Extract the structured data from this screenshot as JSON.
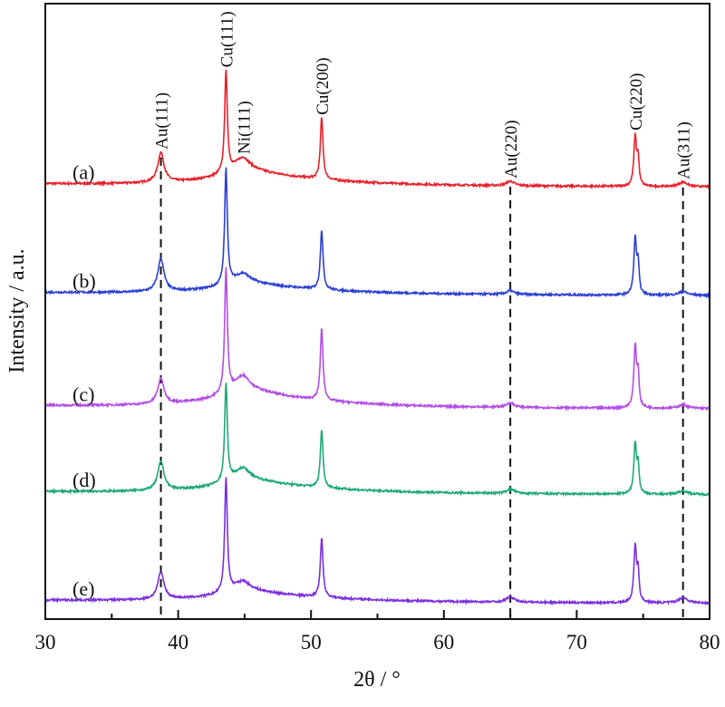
{
  "chart_data": {
    "type": "line",
    "xlabel": "2θ / °",
    "ylabel": "Intensity / a.u.",
    "xlim": [
      30,
      80
    ],
    "ylim": [
      0,
      680
    ],
    "xticks": [
      30,
      40,
      50,
      60,
      70,
      80
    ],
    "xminor_step": 5,
    "grid": false,
    "legend": "none",
    "reference_lines": [
      {
        "x": 38.7,
        "style": "dashed",
        "color": "#111111"
      },
      {
        "x": 65.0,
        "style": "dashed",
        "color": "#111111"
      },
      {
        "x": 78.0,
        "style": "dashed",
        "color": "#111111"
      }
    ],
    "peak_labels": [
      {
        "text": "Au(111)",
        "x": 38.7
      },
      {
        "text": "Cu(111)",
        "x": 43.6
      },
      {
        "text": "Ni(111)",
        "x": 44.9
      },
      {
        "text": "Cu(200)",
        "x": 50.8
      },
      {
        "text": "Au(220)",
        "x": 65.0
      },
      {
        "text": "Cu(220)",
        "x": 74.4
      },
      {
        "text": "Au(311)",
        "x": 78.0
      }
    ],
    "series": [
      {
        "name": "(a)",
        "color": "#e8202c",
        "offset": 478,
        "peaks": {
          "Au111": 33,
          "Cu111": 112,
          "Ni111_hump": 30,
          "Cu200": 68,
          "Au220": 5,
          "Cu220": 55,
          "Au311": 5
        }
      },
      {
        "name": "(b)",
        "color": "#2b3fd2",
        "offset": 358,
        "peaks": {
          "Au111": 36,
          "Cu111": 128,
          "Ni111_hump": 22,
          "Cu200": 66,
          "Au220": 4,
          "Cu220": 62,
          "Au311": 4
        }
      },
      {
        "name": "(c)",
        "color": "#b24de6",
        "offset": 233,
        "peaks": {
          "Au111": 28,
          "Cu111": 138,
          "Ni111_hump": 34,
          "Cu200": 80,
          "Au220": 5,
          "Cu220": 68,
          "Au311": 4
        }
      },
      {
        "name": "(d)",
        "color": "#1fa878",
        "offset": 138,
        "peaks": {
          "Au111": 32,
          "Cu111": 108,
          "Ni111_hump": 27,
          "Cu200": 64,
          "Au220": 5,
          "Cu220": 56,
          "Au311": 4
        }
      },
      {
        "name": "(e)",
        "color": "#7b2fe0",
        "offset": 18,
        "peaks": {
          "Au111": 30,
          "Cu111": 126,
          "Ni111_hump": 22,
          "Cu200": 66,
          "Au220": 6,
          "Cu220": 62,
          "Au311": 6
        }
      }
    ]
  }
}
